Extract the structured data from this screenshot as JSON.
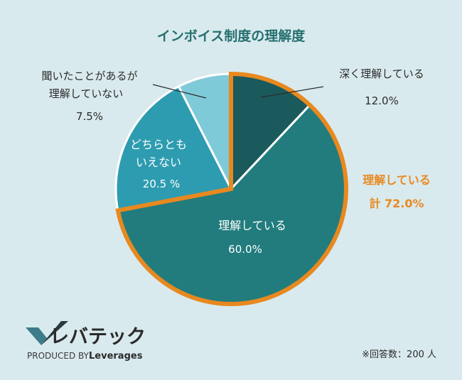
{
  "chart_data": {
    "type": "pie",
    "title": "インボイス制度の理解度",
    "start_angle_deg": 0,
    "direction": "clockwise",
    "slices": [
      {
        "name": "深く理解している",
        "name_lines": [
          "深く理解している"
        ],
        "value": 12.0,
        "value_label": "12.0%",
        "color": "#1a5a5c",
        "label_side": "outside"
      },
      {
        "name": "理解している",
        "name_lines": [
          "理解している"
        ],
        "value": 60.0,
        "value_label": "60.0%",
        "color": "#227c7d",
        "label_side": "inside"
      },
      {
        "name": "どちらともいえない",
        "name_lines": [
          "どちらとも",
          "いえない"
        ],
        "value": 20.5,
        "value_label": "20.5 %",
        "color": "#2e9cb0",
        "label_side": "inside"
      },
      {
        "name": "聞いたことがあるが理解していない",
        "name_lines": [
          "聞いたことがあるが",
          "理解していない"
        ],
        "value": 7.5,
        "value_label": "7.5%",
        "color": "#7fcad9",
        "label_side": "outside"
      }
    ],
    "highlight": {
      "label_line1": "理解している",
      "label_line2": "計 72.0%",
      "value": 72.0,
      "color": "#e8891f"
    },
    "footnote": "※回答数：200 人"
  },
  "brand": {
    "logo_text": "レバテック",
    "sub_prefix": "PRODUCED BY",
    "sub_name": "Leverages",
    "colors": {
      "dark": "#2a3b3b",
      "teal": "#3e7c8a"
    }
  }
}
